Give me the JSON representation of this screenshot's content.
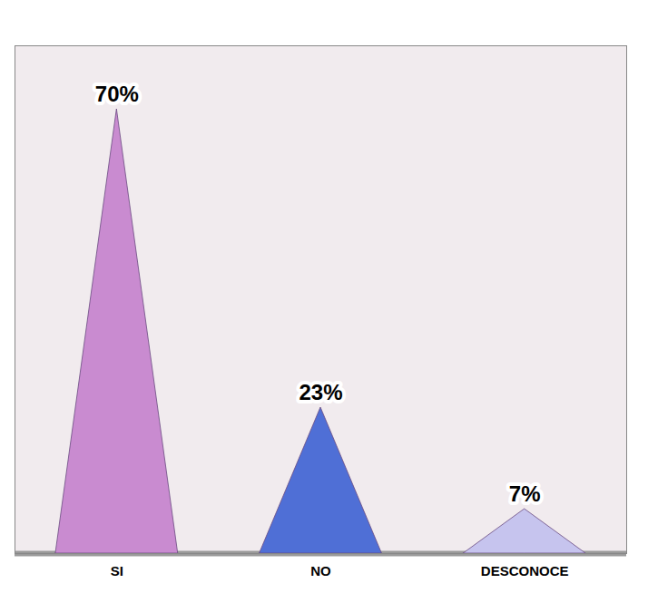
{
  "chart_data": {
    "type": "bar",
    "categories": [
      "SI",
      "NO",
      "DESCONOCE"
    ],
    "values": [
      70,
      23,
      7
    ],
    "value_labels": [
      "70%",
      "23%",
      "7%"
    ],
    "colors": [
      "#c98bd0",
      "#4f6fd6",
      "#c6c4ee"
    ],
    "ylim": [
      0,
      80
    ],
    "data_labels": true,
    "tick_labels": "x"
  }
}
